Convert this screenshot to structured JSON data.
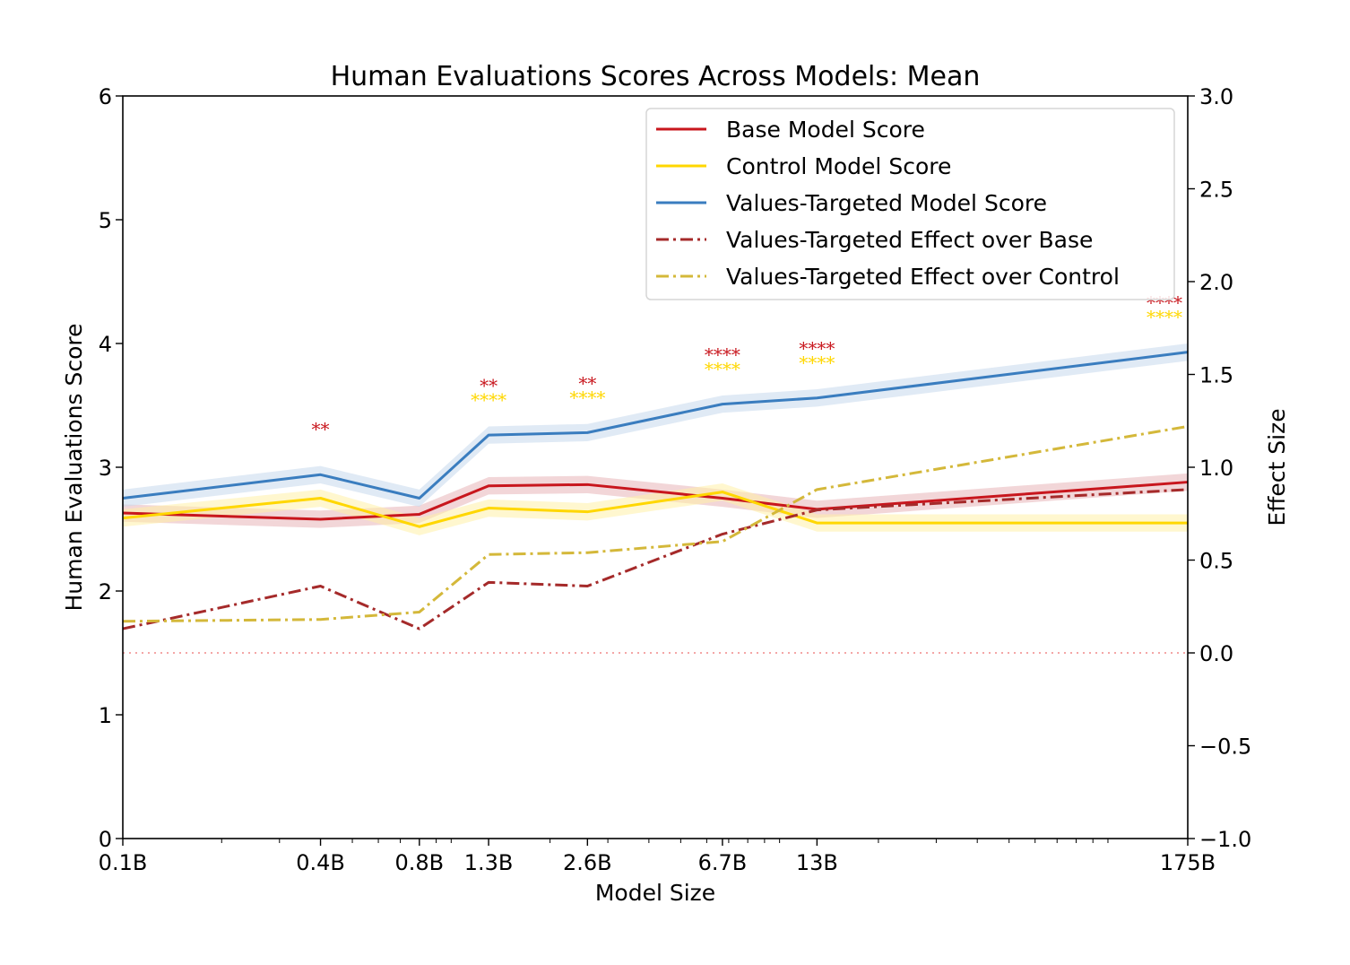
{
  "chart_data": {
    "type": "line",
    "title": "Human Evaluations Scores Across Models: Mean",
    "xlabel": "Model Size",
    "ylabel": "Human Evaluations Score",
    "y2label": "Effect Size",
    "xscale": "log",
    "x": [
      0.1,
      0.4,
      0.8,
      1.3,
      2.6,
      6.7,
      13,
      175
    ],
    "x_tick_labels": [
      "0.1B",
      "0.4B",
      "0.8B",
      "1.3B",
      "2.6B",
      "6.7B",
      "13B",
      "175B"
    ],
    "xlim": [
      0.1,
      175
    ],
    "ylim": [
      0,
      6
    ],
    "y_ticks": [
      0,
      1,
      2,
      3,
      4,
      5,
      6
    ],
    "y_tick_labels": [
      "0",
      "1",
      "2",
      "3",
      "4",
      "5",
      "6"
    ],
    "y2lim": [
      -1.0,
      3.0
    ],
    "y2_ticks": [
      -1.0,
      -0.5,
      0.0,
      0.5,
      1.0,
      1.5,
      2.0,
      2.5,
      3.0
    ],
    "y2_tick_labels": [
      "−1.0",
      "−0.5",
      "0.0",
      "0.5",
      "1.0",
      "1.5",
      "2.0",
      "2.5",
      "3.0"
    ],
    "grid": false,
    "legend_position": "top-right",
    "reference_line": {
      "axis": "y2",
      "value": 0.0,
      "style": "dotted",
      "color": "#f4a6a6"
    },
    "series": [
      {
        "name": "Base Model Score",
        "axis": "y",
        "style": "solid",
        "color": "#c8161d",
        "band_color": "#e8b4b8",
        "values": [
          2.63,
          2.58,
          2.62,
          2.85,
          2.86,
          2.75,
          2.66,
          2.88
        ],
        "band": 0.07
      },
      {
        "name": "Control Model Score",
        "axis": "y",
        "style": "solid",
        "color": "#ffd700",
        "band_color": "#fff1a8",
        "values": [
          2.59,
          2.75,
          2.52,
          2.67,
          2.64,
          2.8,
          2.55,
          2.55
        ],
        "band": 0.07
      },
      {
        "name": "Values-Targeted Model Score",
        "axis": "y",
        "style": "solid",
        "color": "#3a7dbf",
        "band_color": "#c6d9ec",
        "values": [
          2.75,
          2.94,
          2.75,
          3.26,
          3.28,
          3.51,
          3.56,
          3.93
        ],
        "band": 0.07
      },
      {
        "name": "Values-Targeted Effect over Base",
        "axis": "y2",
        "style": "dashdot",
        "color": "#a52a2a",
        "values": [
          0.13,
          0.36,
          0.13,
          0.38,
          0.36,
          0.64,
          0.77,
          0.88
        ]
      },
      {
        "name": "Values-Targeted Effect over Control",
        "axis": "y2",
        "style": "dashdot",
        "color": "#d4b83a",
        "values": [
          0.17,
          0.18,
          0.22,
          0.53,
          0.54,
          0.6,
          0.88,
          1.22
        ]
      }
    ],
    "significance_annotations": [
      {
        "x": 0.4,
        "over_base": "**",
        "over_control": ""
      },
      {
        "x": 1.3,
        "over_base": "**",
        "over_control": "****"
      },
      {
        "x": 2.6,
        "over_base": "**",
        "over_control": "****"
      },
      {
        "x": 6.7,
        "over_base": "****",
        "over_control": "****"
      },
      {
        "x": 13,
        "over_base": "****",
        "over_control": "****"
      },
      {
        "x": 175,
        "over_base": "****",
        "over_control": "****"
      }
    ],
    "significance_colors": {
      "over_base": "#c8161d",
      "over_control": "#ffd700"
    }
  }
}
